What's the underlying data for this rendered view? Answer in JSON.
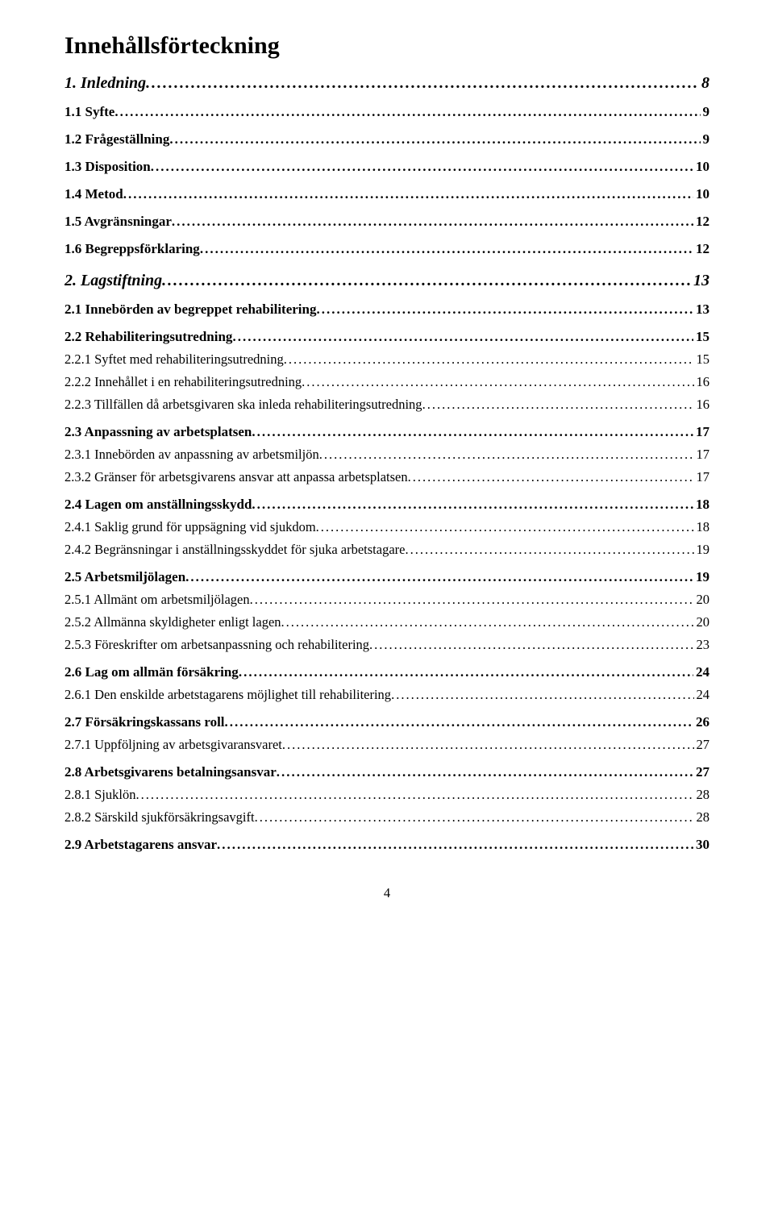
{
  "title": "Innehållsförteckning",
  "page_number": "4",
  "entries": [
    {
      "level": 1,
      "label": "1. Inledning",
      "page": "8"
    },
    {
      "level": 2,
      "label": "1.1 Syfte",
      "page": "9"
    },
    {
      "level": 2,
      "label": "1.2 Frågeställning",
      "page": "9"
    },
    {
      "level": 2,
      "label": "1.3 Disposition",
      "page": "10"
    },
    {
      "level": 2,
      "label": "1.4 Metod",
      "page": "10"
    },
    {
      "level": 2,
      "label": "1.5 Avgränsningar",
      "page": "12"
    },
    {
      "level": 2,
      "label": "1.6 Begreppsförklaring",
      "page": "12"
    },
    {
      "level": 1,
      "label": "2. Lagstiftning",
      "page": "13"
    },
    {
      "level": 2,
      "label": "2.1 Innebörden av begreppet rehabilitering",
      "page": "13"
    },
    {
      "level": 2,
      "label": "2.2 Rehabiliteringsutredning",
      "page": "15"
    },
    {
      "level": 3,
      "label": "2.2.1 Syftet med rehabiliteringsutredning",
      "page": "15"
    },
    {
      "level": 3,
      "label": "2.2.2 Innehållet i en rehabiliteringsutredning",
      "page": "16"
    },
    {
      "level": 3,
      "label": "2.2.3 Tillfällen då arbetsgivaren ska inleda rehabiliteringsutredning",
      "page": "16"
    },
    {
      "level": 2,
      "label": "2.3 Anpassning av arbetsplatsen",
      "page": "17"
    },
    {
      "level": 3,
      "label": "2.3.1 Innebörden av anpassning av arbetsmiljön",
      "page": "17"
    },
    {
      "level": 3,
      "label": "2.3.2 Gränser för arbetsgivarens ansvar att anpassa arbetsplatsen",
      "page": "17"
    },
    {
      "level": 2,
      "label": "2.4 Lagen om anställningsskydd",
      "page": "18"
    },
    {
      "level": 3,
      "label": "2.4.1 Saklig grund för uppsägning vid sjukdom",
      "page": "18"
    },
    {
      "level": 3,
      "label": "2.4.2 Begränsningar i anställningsskyddet för sjuka arbetstagare",
      "page": "19"
    },
    {
      "level": 2,
      "label": "2.5 Arbetsmiljölagen",
      "page": "19"
    },
    {
      "level": 3,
      "label": "2.5.1 Allmänt om arbetsmiljölagen",
      "page": "20"
    },
    {
      "level": 3,
      "label": "2.5.2 Allmänna skyldigheter enligt lagen",
      "page": "20"
    },
    {
      "level": 3,
      "label": "2.5.3 Föreskrifter om arbetsanpassning och rehabilitering",
      "page": "23"
    },
    {
      "level": 2,
      "label": "2.6 Lag om allmän försäkring",
      "page": "24"
    },
    {
      "level": 3,
      "label": "2.6.1 Den enskilde arbetstagarens möjlighet till rehabilitering",
      "page": "24"
    },
    {
      "level": 2,
      "label": "2.7 Försäkringskassans roll",
      "page": "26"
    },
    {
      "level": 3,
      "label": "2.7.1 Uppföljning av arbetsgivaransvaret",
      "page": "27"
    },
    {
      "level": 2,
      "label": "2.8 Arbetsgivarens betalningsansvar",
      "page": "27"
    },
    {
      "level": 3,
      "label": "2.8.1 Sjuklön",
      "page": "28"
    },
    {
      "level": 3,
      "label": "2.8.2 Särskild sjukförsäkringsavgift",
      "page": "28"
    },
    {
      "level": 2,
      "label": "2.9 Arbetstagarens ansvar",
      "page": "30"
    }
  ]
}
